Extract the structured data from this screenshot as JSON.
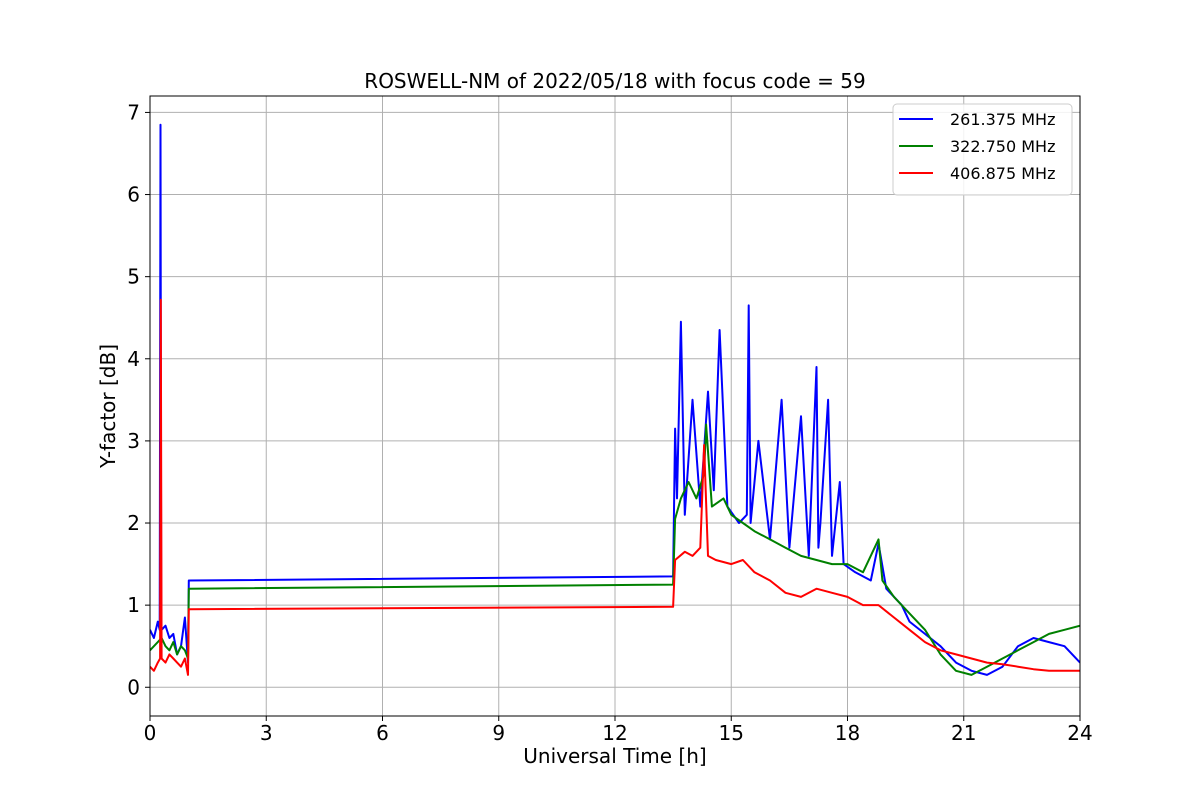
{
  "chart_data": {
    "type": "line",
    "title": "ROSWELL-NM of 2022/05/18 with focus code = 59",
    "xlabel": "Universal Time [h]",
    "ylabel": "Y-factor [dB]",
    "xlim": [
      0,
      24
    ],
    "ylim": [
      -0.35,
      7.2
    ],
    "xticks": [
      0,
      3,
      6,
      9,
      12,
      15,
      18,
      21,
      24
    ],
    "yticks": [
      0,
      1,
      2,
      3,
      4,
      5,
      6,
      7
    ],
    "grid": true,
    "legend_position": "top-right",
    "series": [
      {
        "name": "261.375 MHz",
        "color": "#0000ff",
        "x": [
          0,
          0.1,
          0.2,
          0.25,
          0.27,
          0.29,
          0.3,
          0.4,
          0.5,
          0.6,
          0.7,
          0.8,
          0.9,
          0.98,
          1.0,
          13.5,
          13.55,
          13.6,
          13.7,
          13.8,
          14.0,
          14.2,
          14.4,
          14.55,
          14.7,
          14.9,
          15.2,
          15.4,
          15.45,
          15.5,
          15.7,
          16.0,
          16.3,
          16.5,
          16.8,
          17.0,
          17.2,
          17.25,
          17.3,
          17.5,
          17.6,
          17.8,
          17.9,
          18.2,
          18.6,
          18.8,
          19.0,
          19.4,
          19.6,
          20.0,
          20.4,
          20.8,
          21.2,
          21.6,
          22.0,
          22.4,
          22.8,
          23.2,
          23.6,
          24.0
        ],
        "y": [
          0.7,
          0.6,
          0.8,
          0.7,
          6.85,
          0.8,
          0.7,
          0.75,
          0.6,
          0.65,
          0.4,
          0.5,
          0.85,
          0.3,
          1.3,
          1.35,
          3.15,
          2.3,
          4.45,
          2.1,
          3.5,
          2.2,
          3.6,
          2.4,
          4.35,
          2.2,
          2.0,
          2.1,
          4.65,
          2.0,
          3.0,
          1.8,
          3.5,
          1.7,
          3.3,
          1.6,
          3.9,
          1.7,
          2.0,
          3.5,
          1.6,
          2.5,
          1.5,
          1.4,
          1.3,
          1.75,
          1.2,
          1.0,
          0.8,
          0.65,
          0.5,
          0.3,
          0.2,
          0.15,
          0.25,
          0.5,
          0.6,
          0.55,
          0.5,
          0.3
        ]
      },
      {
        "name": "322.750 MHz",
        "color": "#008000",
        "x": [
          0,
          0.1,
          0.2,
          0.3,
          0.4,
          0.5,
          0.6,
          0.7,
          0.8,
          0.9,
          0.98,
          1.0,
          13.5,
          13.55,
          13.7,
          13.9,
          14.1,
          14.3,
          14.35,
          14.5,
          14.8,
          15.0,
          15.3,
          15.6,
          16.0,
          16.4,
          16.8,
          17.2,
          17.6,
          18.0,
          18.4,
          18.8,
          18.9,
          19.2,
          19.6,
          20.0,
          20.4,
          20.8,
          21.2,
          21.6,
          22.0,
          22.4,
          22.8,
          23.2,
          23.6,
          24.0
        ],
        "y": [
          0.45,
          0.5,
          0.55,
          0.6,
          0.5,
          0.45,
          0.55,
          0.4,
          0.5,
          0.45,
          0.35,
          1.2,
          1.25,
          2.05,
          2.3,
          2.5,
          2.3,
          2.6,
          3.2,
          2.2,
          2.3,
          2.1,
          2.0,
          1.9,
          1.8,
          1.7,
          1.6,
          1.55,
          1.5,
          1.5,
          1.4,
          1.8,
          1.3,
          1.1,
          0.9,
          0.7,
          0.4,
          0.2,
          0.15,
          0.25,
          0.35,
          0.45,
          0.55,
          0.65,
          0.7,
          0.75
        ]
      },
      {
        "name": "406.875 MHz",
        "color": "#ff0000",
        "x": [
          0,
          0.1,
          0.2,
          0.26,
          0.28,
          0.3,
          0.4,
          0.5,
          0.6,
          0.7,
          0.8,
          0.9,
          0.98,
          1.0,
          13.5,
          13.55,
          13.8,
          14.0,
          14.2,
          14.3,
          14.4,
          14.6,
          15.0,
          15.3,
          15.6,
          16.0,
          16.4,
          16.8,
          17.2,
          17.6,
          18.0,
          18.4,
          18.8,
          19.2,
          19.6,
          20.0,
          20.4,
          20.8,
          21.2,
          21.6,
          22.0,
          22.4,
          22.8,
          23.2,
          23.6,
          24.0
        ],
        "y": [
          0.25,
          0.2,
          0.3,
          0.35,
          4.72,
          0.35,
          0.3,
          0.4,
          0.35,
          0.3,
          0.25,
          0.35,
          0.15,
          0.95,
          0.98,
          1.55,
          1.65,
          1.6,
          1.7,
          2.95,
          1.6,
          1.55,
          1.5,
          1.55,
          1.4,
          1.3,
          1.15,
          1.1,
          1.2,
          1.15,
          1.1,
          1.0,
          1.0,
          0.85,
          0.7,
          0.55,
          0.45,
          0.4,
          0.35,
          0.3,
          0.28,
          0.25,
          0.22,
          0.2,
          0.2,
          0.2
        ]
      }
    ]
  }
}
